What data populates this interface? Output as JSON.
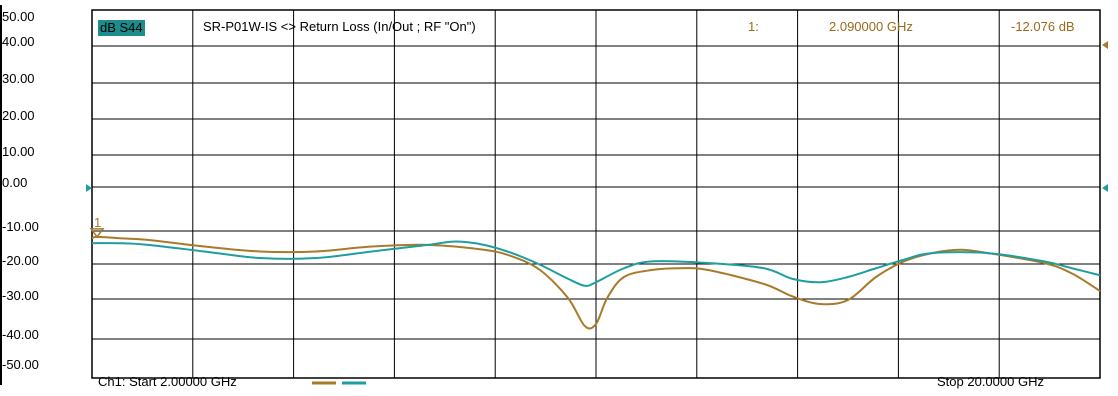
{
  "header": {
    "trace_name": "dB S44",
    "trace_title": "SR-P01W-IS <> Return Loss (In/Out ; RF \"On\")",
    "marker_number": "1:",
    "marker_frequency": "2.090000 GHz",
    "marker_value": "-12.076 dB"
  },
  "y_tick_labels": [
    "50.00",
    "40.00",
    "30.00",
    "20.00",
    "10.00",
    "0.00",
    "-10.00",
    "-20.00",
    "-30.00",
    "-40.00",
    "-50.00"
  ],
  "footer": {
    "start_label": "Ch1: Start 2.00000 GHz",
    "stop_label": "Stop 20.0000 GHz"
  },
  "marker_label": "1",
  "colors": {
    "trace_s44": "#a87a2a",
    "trace_s11": "#1e9e9e",
    "grid": "#000000",
    "marker_text": "#9a6a1e",
    "trace_name_bg": "#1c8c8c"
  },
  "chart_data": {
    "type": "line",
    "xlabel": "",
    "ylabel": "",
    "xlim": [
      2.0,
      20.0
    ],
    "ylim": [
      -50,
      50
    ],
    "x_unit": "GHz",
    "y_unit": "dB",
    "grid": true,
    "series": [
      {
        "name": "dB S44",
        "color": "#a87a2a",
        "x": [
          2.0,
          2.09,
          2.5,
          3.0,
          4.0,
          5.0,
          6.0,
          7.0,
          8.0,
          9.0,
          9.5,
          10.0,
          10.5,
          10.8,
          11.0,
          11.2,
          11.5,
          12.0,
          12.5,
          13.0,
          14.0,
          14.5,
          15.0,
          15.5,
          16.0,
          16.5,
          17.0,
          17.5,
          18.0,
          19.0,
          19.5,
          20.0
        ],
        "y": [
          -12.5,
          -12.1,
          -12.5,
          -13.0,
          -15.0,
          -16.5,
          -16.5,
          -15.0,
          -14.5,
          -16.0,
          -18.0,
          -22.0,
          -30.0,
          -37.0,
          -36.5,
          -30.0,
          -24.0,
          -22.0,
          -21.5,
          -22.0,
          -26.0,
          -29.5,
          -31.5,
          -30.5,
          -24.0,
          -19.5,
          -17.0,
          -16.0,
          -17.0,
          -20.0,
          -23.0,
          -28.0
        ]
      },
      {
        "name": "",
        "color": "#1e9e9e",
        "x": [
          2.0,
          2.5,
          3.0,
          4.0,
          5.0,
          6.0,
          7.0,
          8.0,
          8.5,
          9.0,
          9.5,
          10.0,
          10.5,
          10.8,
          11.0,
          11.5,
          12.0,
          13.0,
          14.0,
          14.5,
          15.0,
          15.5,
          16.0,
          16.5,
          17.0,
          18.0,
          19.0,
          19.5,
          20.0
        ],
        "y": [
          -14.0,
          -14.0,
          -14.5,
          -16.5,
          -18.5,
          -18.5,
          -16.5,
          -14.5,
          -13.5,
          -14.5,
          -17.0,
          -20.5,
          -24.5,
          -26.5,
          -25.5,
          -21.5,
          -19.5,
          -20.0,
          -21.5,
          -24.5,
          -25.5,
          -24.0,
          -21.5,
          -19.0,
          -17.0,
          -17.0,
          -19.5,
          -21.5,
          -23.5
        ]
      }
    ],
    "markers": [
      {
        "label": "1",
        "x": 2.09,
        "y": -12.076
      }
    ]
  }
}
